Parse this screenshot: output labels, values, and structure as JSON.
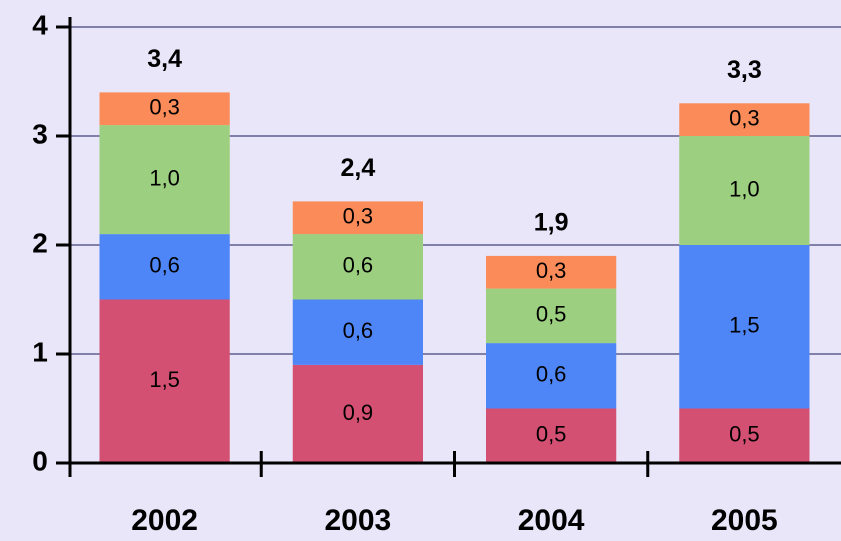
{
  "chart_data": {
    "type": "stacked-bar",
    "categories": [
      "2002",
      "2003",
      "2004",
      "2005"
    ],
    "series": [
      {
        "color": "#d45072",
        "values": [
          1.5,
          0.9,
          0.5,
          0.5
        ],
        "value_labels": [
          "1,5",
          "0,9",
          "0,5",
          "0,5"
        ]
      },
      {
        "color": "#4f86f7",
        "values": [
          0.6,
          0.6,
          0.6,
          1.5
        ],
        "value_labels": [
          "0,6",
          "0,6",
          "0,6",
          "1,5"
        ]
      },
      {
        "color": "#9ccf7f",
        "values": [
          1.0,
          0.6,
          0.5,
          1.0
        ],
        "value_labels": [
          "1,0",
          "0,6",
          "0,5",
          "1,0"
        ]
      },
      {
        "color": "#fb8c5a",
        "values": [
          0.3,
          0.3,
          0.3,
          0.3
        ],
        "value_labels": [
          "0,3",
          "0,3",
          "0,3",
          "0,3"
        ]
      }
    ],
    "totals": {
      "values": [
        3.4,
        2.4,
        1.9,
        3.3
      ],
      "value_labels": [
        "3,4",
        "2,4",
        "1,9",
        "3,3"
      ]
    },
    "ylim": [
      0,
      4
    ],
    "yticks": [
      0,
      1,
      2,
      3,
      4
    ],
    "grid": true
  }
}
